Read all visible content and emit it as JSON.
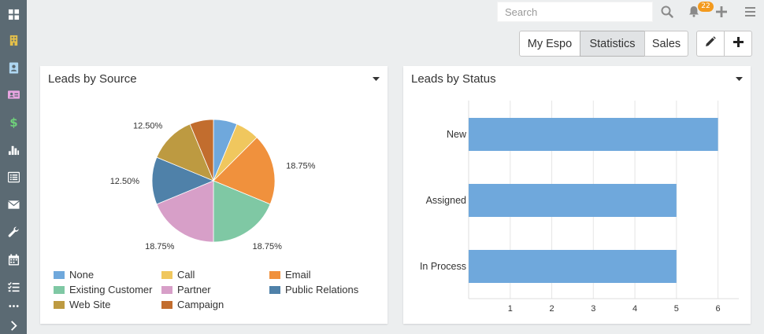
{
  "search": {
    "placeholder": "Search",
    "value": ""
  },
  "notifications": {
    "count": "22"
  },
  "sidebar": {
    "items": [
      {
        "name": "dashboard-icon",
        "color": "#ffffff"
      },
      {
        "name": "building-icon",
        "color": "#e5c04a"
      },
      {
        "name": "contact-icon",
        "color": "#aed6f1"
      },
      {
        "name": "id-card-icon",
        "color": "#e8a5e1"
      },
      {
        "name": "dollar-icon",
        "color": "#6fd17a"
      },
      {
        "name": "bar-chart-icon",
        "color": "#ffffff"
      },
      {
        "name": "list-icon",
        "color": "#ffffff"
      },
      {
        "name": "envelope-icon",
        "color": "#ffffff"
      },
      {
        "name": "wrench-icon",
        "color": "#ffffff"
      },
      {
        "name": "calendar-icon",
        "color": "#ffffff"
      },
      {
        "name": "task-list-icon",
        "color": "#ffffff"
      },
      {
        "name": "more-icon",
        "color": "#ffffff"
      },
      {
        "name": "chevron-right-icon",
        "color": "#ffffff"
      }
    ]
  },
  "tabs": [
    {
      "label": "My Espo",
      "active": false
    },
    {
      "label": "Statistics",
      "active": true
    },
    {
      "label": "Sales",
      "active": false
    }
  ],
  "panels": {
    "leads_by_source": {
      "title": "Leads by Source"
    },
    "leads_by_status": {
      "title": "Leads by Status"
    }
  },
  "chart_data": [
    {
      "type": "pie",
      "categories": [
        "None",
        "Call",
        "Email",
        "Existing Customer",
        "Partner",
        "Public Relations",
        "Web Site",
        "Campaign"
      ],
      "values": [
        6.25,
        6.25,
        18.75,
        18.75,
        18.75,
        12.5,
        12.5,
        6.25
      ],
      "colors": [
        "#6fa8dc",
        "#f0c75e",
        "#f0913d",
        "#7fc8a4",
        "#d79fc8",
        "#4f81a9",
        "#bd9a41",
        "#c26d2e"
      ],
      "slice_labels": [
        "",
        "",
        "18.75%",
        "18.75%",
        "18.75%",
        "12.50%",
        "12.50%",
        ""
      ],
      "legend": "bottom"
    },
    {
      "type": "bar",
      "orientation": "horizontal",
      "categories": [
        "New",
        "Assigned",
        "In Process"
      ],
      "values": [
        6,
        5,
        5
      ],
      "xticks": [
        "1",
        "2",
        "3",
        "4",
        "5",
        "6"
      ],
      "xlim": [
        0,
        6.5
      ],
      "color": "#6fa8dc",
      "grid": true
    }
  ]
}
